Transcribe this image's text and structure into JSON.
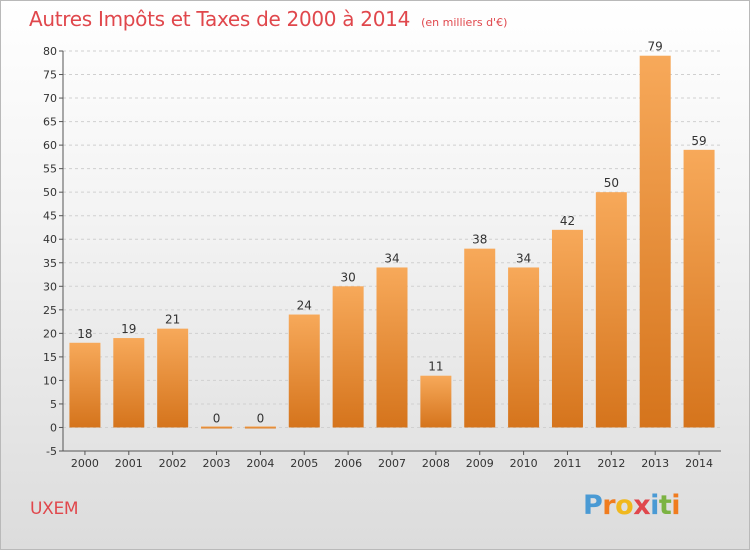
{
  "header": {
    "title": "Autres Impôts et Taxes de 2000 à 2014",
    "subtitle": "(en milliers d'€)"
  },
  "footer": {
    "commune": "UXEM",
    "logo": {
      "letters": [
        "P",
        "r",
        "o",
        "x",
        "i",
        "t",
        "i"
      ],
      "colors": [
        "#4a9ad4",
        "#f07c1e",
        "#f0b81e",
        "#e0474c",
        "#4a9ad4",
        "#7cb342",
        "#f07c1e"
      ]
    }
  },
  "colors": {
    "bar_light": "#f7a95a",
    "bar_dark": "#d5741c",
    "grid": "#d0d0d0",
    "title": "#e0474c"
  },
  "chart_data": {
    "type": "bar",
    "title": "Autres Impôts et Taxes de 2000 à 2014",
    "subtitle": "(en milliers d'€)",
    "categories": [
      "2000",
      "2001",
      "2002",
      "2003",
      "2004",
      "2005",
      "2006",
      "2007",
      "2008",
      "2009",
      "2010",
      "2011",
      "2012",
      "2013",
      "2014"
    ],
    "values": [
      18,
      19,
      21,
      0,
      0,
      24,
      30,
      34,
      11,
      38,
      34,
      42,
      50,
      79,
      59
    ],
    "ylim": [
      -5,
      80
    ],
    "yticks": [
      "-5",
      "0",
      "5",
      "10",
      "15",
      "20",
      "25",
      "30",
      "35",
      "40",
      "45",
      "50",
      "55",
      "60",
      "65",
      "70",
      "75",
      "80"
    ],
    "grid": "horizontal dashed",
    "legend": "none"
  }
}
